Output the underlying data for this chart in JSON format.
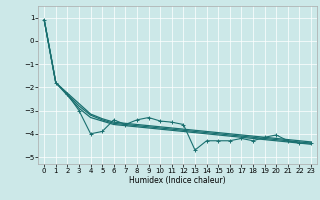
{
  "title": "",
  "xlabel": "Humidex (Indice chaleur)",
  "background_color": "#cce8e8",
  "grid_color": "#ffffff",
  "line_color": "#1a7070",
  "xlim": [
    -0.5,
    23.5
  ],
  "ylim": [
    -5.3,
    1.5
  ],
  "x_ticks": [
    0,
    1,
    2,
    3,
    4,
    5,
    6,
    7,
    8,
    9,
    10,
    11,
    12,
    13,
    14,
    15,
    16,
    17,
    18,
    19,
    20,
    21,
    22,
    23
  ],
  "y_ticks": [
    1,
    0,
    -1,
    -2,
    -3,
    -4,
    -5
  ],
  "smooth_line1": [
    0.9,
    -1.8,
    -2.25,
    -2.7,
    -3.15,
    -3.35,
    -3.5,
    -3.55,
    -3.6,
    -3.65,
    -3.7,
    -3.75,
    -3.8,
    -3.85,
    -3.9,
    -3.95,
    -4.0,
    -4.05,
    -4.1,
    -4.15,
    -4.2,
    -4.25,
    -4.3,
    -4.35
  ],
  "smooth_line2": [
    0.9,
    -1.8,
    -2.3,
    -2.8,
    -3.2,
    -3.4,
    -3.55,
    -3.6,
    -3.65,
    -3.7,
    -3.75,
    -3.8,
    -3.85,
    -3.9,
    -3.95,
    -4.0,
    -4.05,
    -4.1,
    -4.15,
    -4.2,
    -4.25,
    -4.3,
    -4.35,
    -4.4
  ],
  "smooth_line3": [
    0.9,
    -1.8,
    -2.35,
    -2.9,
    -3.3,
    -3.45,
    -3.6,
    -3.65,
    -3.7,
    -3.75,
    -3.8,
    -3.85,
    -3.9,
    -3.95,
    -4.0,
    -4.05,
    -4.1,
    -4.15,
    -4.2,
    -4.25,
    -4.3,
    -4.35,
    -4.4,
    -4.45
  ],
  "x_vals": [
    0,
    1,
    2,
    3,
    4,
    5,
    6,
    7,
    8,
    9,
    10,
    11,
    12,
    13,
    14,
    15,
    16,
    17,
    18,
    19,
    20,
    21,
    22,
    23
  ],
  "jagged_y": [
    0.9,
    -1.8,
    -2.3,
    -3.0,
    -4.0,
    -3.9,
    -3.4,
    -3.6,
    -3.4,
    -3.3,
    -3.45,
    -3.5,
    -3.6,
    -4.7,
    -4.3,
    -4.3,
    -4.3,
    -4.2,
    -4.3,
    -4.15,
    -4.05,
    -4.3,
    -4.4,
    -4.4
  ]
}
